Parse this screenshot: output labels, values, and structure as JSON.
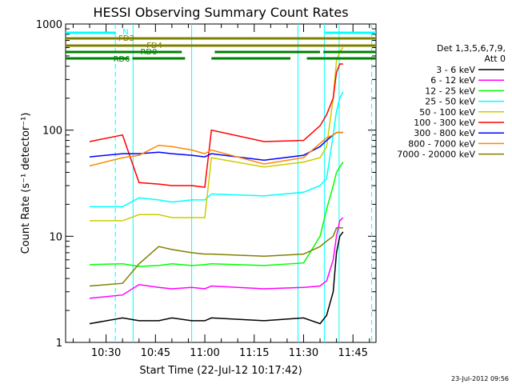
{
  "chart_data": {
    "type": "line",
    "title": "HESSI Observing Summary Count Rates",
    "xlabel": "Start Time (22-Jul-12 10:17:42)",
    "ylabel": "Count Rate (s⁻¹ detector⁻¹)",
    "yscale": "log",
    "ylim": [
      1,
      1000
    ],
    "xlim_minutes": [
      17.7,
      112
    ],
    "x_tick_labels": [
      "10:30",
      "10:45",
      "11:00",
      "11:15",
      "11:30",
      "11:45"
    ],
    "x_ticks_minutes": [
      30,
      45,
      60,
      75,
      90,
      105
    ],
    "y_tick_labels": [
      "1",
      "10",
      "100",
      "1000"
    ],
    "y_ticks": [
      1,
      10,
      100,
      1000
    ],
    "grid": false,
    "legend_position": "right",
    "legend_header": [
      "Det 1,3,5,6,7,9,",
      "Att 0"
    ],
    "series": [
      {
        "name": "3 - 6 keV",
        "color": "#000000",
        "x": [
          25,
          35,
          40,
          46,
          50,
          56,
          60,
          62,
          78,
          90,
          95,
          97,
          99,
          100,
          101,
          102
        ],
        "y": [
          1.5,
          1.7,
          1.6,
          1.6,
          1.7,
          1.6,
          1.6,
          1.7,
          1.6,
          1.7,
          1.5,
          1.8,
          3,
          7,
          10,
          11
        ]
      },
      {
        "name": "6 - 12 keV",
        "color": "#ff00ff",
        "x": [
          25,
          35,
          40,
          46,
          50,
          56,
          60,
          62,
          78,
          90,
          95,
          97,
          99,
          100,
          101,
          102
        ],
        "y": [
          2.6,
          2.8,
          3.5,
          3.3,
          3.2,
          3.3,
          3.2,
          3.4,
          3.2,
          3.3,
          3.4,
          3.8,
          6,
          10,
          14,
          15
        ]
      },
      {
        "name": "12 - 25 keV",
        "color": "#00ff00",
        "x": [
          25,
          35,
          40,
          46,
          50,
          56,
          60,
          62,
          78,
          90,
          95,
          97,
          99,
          100,
          101,
          102
        ],
        "y": [
          5.4,
          5.5,
          5.2,
          5.3,
          5.5,
          5.3,
          5.4,
          5.5,
          5.3,
          5.6,
          10,
          18,
          30,
          40,
          45,
          50
        ]
      },
      {
        "name": "25 - 50 keV",
        "color": "#00ffff",
        "x": [
          25,
          35,
          40,
          46,
          50,
          56,
          60,
          62,
          78,
          90,
          95,
          97,
          99,
          100,
          101,
          102
        ],
        "y": [
          19,
          19,
          23,
          22,
          21,
          22,
          22,
          25,
          24,
          26,
          30,
          35,
          90,
          150,
          200,
          230
        ]
      },
      {
        "name": "50 - 100 keV",
        "color": "#cccc00",
        "x": [
          25,
          35,
          40,
          46,
          50,
          56,
          60,
          62,
          78,
          90,
          95,
          97,
          99,
          100,
          101,
          102
        ],
        "y": [
          14,
          14,
          16,
          16,
          15,
          15,
          15,
          55,
          45,
          50,
          55,
          70,
          200,
          450,
          550,
          600
        ]
      },
      {
        "name": "100 - 300 keV",
        "color": "#ff0000",
        "x": [
          25,
          35,
          40,
          46,
          50,
          56,
          60,
          62,
          78,
          90,
          95,
          97,
          99,
          100,
          101,
          102
        ],
        "y": [
          78,
          90,
          32,
          31,
          30,
          30,
          29,
          100,
          78,
          80,
          110,
          140,
          200,
          350,
          420,
          420
        ]
      },
      {
        "name": "300 - 800 keV",
        "color": "#0000ff",
        "x": [
          25,
          35,
          40,
          46,
          50,
          56,
          60,
          62,
          78,
          90,
          95,
          97,
          99,
          100,
          101,
          102
        ],
        "y": [
          56,
          60,
          60,
          62,
          60,
          58,
          56,
          60,
          52,
          58,
          70,
          80,
          90,
          95,
          95,
          95
        ]
      },
      {
        "name": "800 - 7000 keV",
        "color": "#ff8800",
        "x": [
          25,
          35,
          40,
          46,
          50,
          56,
          60,
          62,
          78,
          90,
          95,
          97,
          99,
          100,
          101,
          102
        ],
        "y": [
          46,
          55,
          58,
          72,
          70,
          65,
          60,
          65,
          48,
          55,
          75,
          85,
          90,
          95,
          95,
          95
        ]
      },
      {
        "name": "7000 - 20000 keV",
        "color": "#808000",
        "x": [
          25,
          35,
          40,
          46,
          50,
          56,
          60,
          62,
          78,
          90,
          95,
          97,
          99,
          100,
          101,
          102
        ],
        "y": [
          3.4,
          3.6,
          5.5,
          8,
          7.5,
          7,
          6.8,
          6.8,
          6.5,
          6.8,
          8,
          9,
          10,
          12,
          12,
          12
        ]
      }
    ],
    "flag_bars": [
      {
        "label": "N",
        "color": "#00ffff",
        "segments": [
          [
            17.7,
            33
          ],
          [
            96.5,
            112
          ]
        ]
      },
      {
        "label": "FD3",
        "color": "#808000",
        "segments": [
          [
            17.7,
            112
          ]
        ]
      },
      {
        "label": "FD4",
        "color": "#808000",
        "segments": [
          [
            17.7,
            112
          ]
        ]
      },
      {
        "label": "RD0",
        "color": "#008000",
        "segments": [
          [
            17.7,
            53
          ],
          [
            63,
            95
          ],
          [
            96,
            112
          ]
        ]
      },
      {
        "label": "RD6",
        "color": "#008000",
        "segments": [
          [
            17.7,
            37
          ],
          [
            38,
            54
          ],
          [
            62,
            86
          ],
          [
            91,
            112
          ]
        ]
      }
    ],
    "vlines": [
      {
        "x": 32.8,
        "color": "#00ffff",
        "dash": true
      },
      {
        "x": 38.2,
        "color": "#00ffff",
        "dash": false
      },
      {
        "x": 56.0,
        "color": "#00ffff",
        "dash": false
      },
      {
        "x": 88.3,
        "color": "#00ffff",
        "dash": false
      },
      {
        "x": 96.3,
        "color": "#00ffff",
        "dash": false
      },
      {
        "x": 100.8,
        "color": "#00ffff",
        "dash": false
      },
      {
        "x": 110.7,
        "color": "#00ffff",
        "dash": true
      }
    ]
  },
  "footer": {
    "timestamp": "23-Jul-2012 09:56"
  }
}
